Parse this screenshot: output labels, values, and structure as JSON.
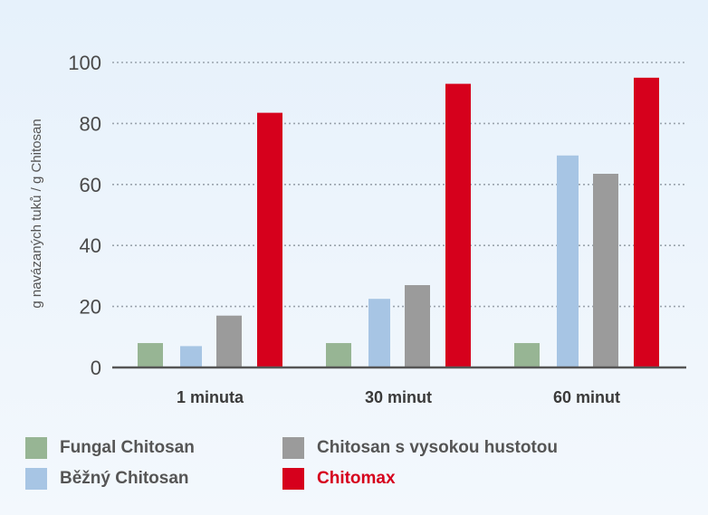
{
  "chart_data": {
    "type": "bar",
    "title": "",
    "xlabel": "",
    "ylabel": "g navázaných tuků / g Chitosan",
    "ylim": [
      0,
      100
    ],
    "yticks": [
      0,
      20,
      40,
      60,
      80,
      100
    ],
    "grid": true,
    "legend_position": "bottom",
    "categories": [
      "1 minuta",
      "30 minut",
      "60 minut"
    ],
    "series": [
      {
        "name": "Fungal Chitosan",
        "color": "#97b594",
        "values": [
          8,
          8,
          8
        ]
      },
      {
        "name": "Běžný Chitosan",
        "color": "#a7c5e4",
        "values": [
          7,
          22.5,
          69.5
        ]
      },
      {
        "name": "Chitosan s vysokou hustotou",
        "color": "#9b9b9b",
        "values": [
          17,
          27,
          63.5
        ]
      },
      {
        "name": "Chitomax",
        "color": "#d6001c",
        "values": [
          83.5,
          93,
          95
        ]
      }
    ]
  }
}
